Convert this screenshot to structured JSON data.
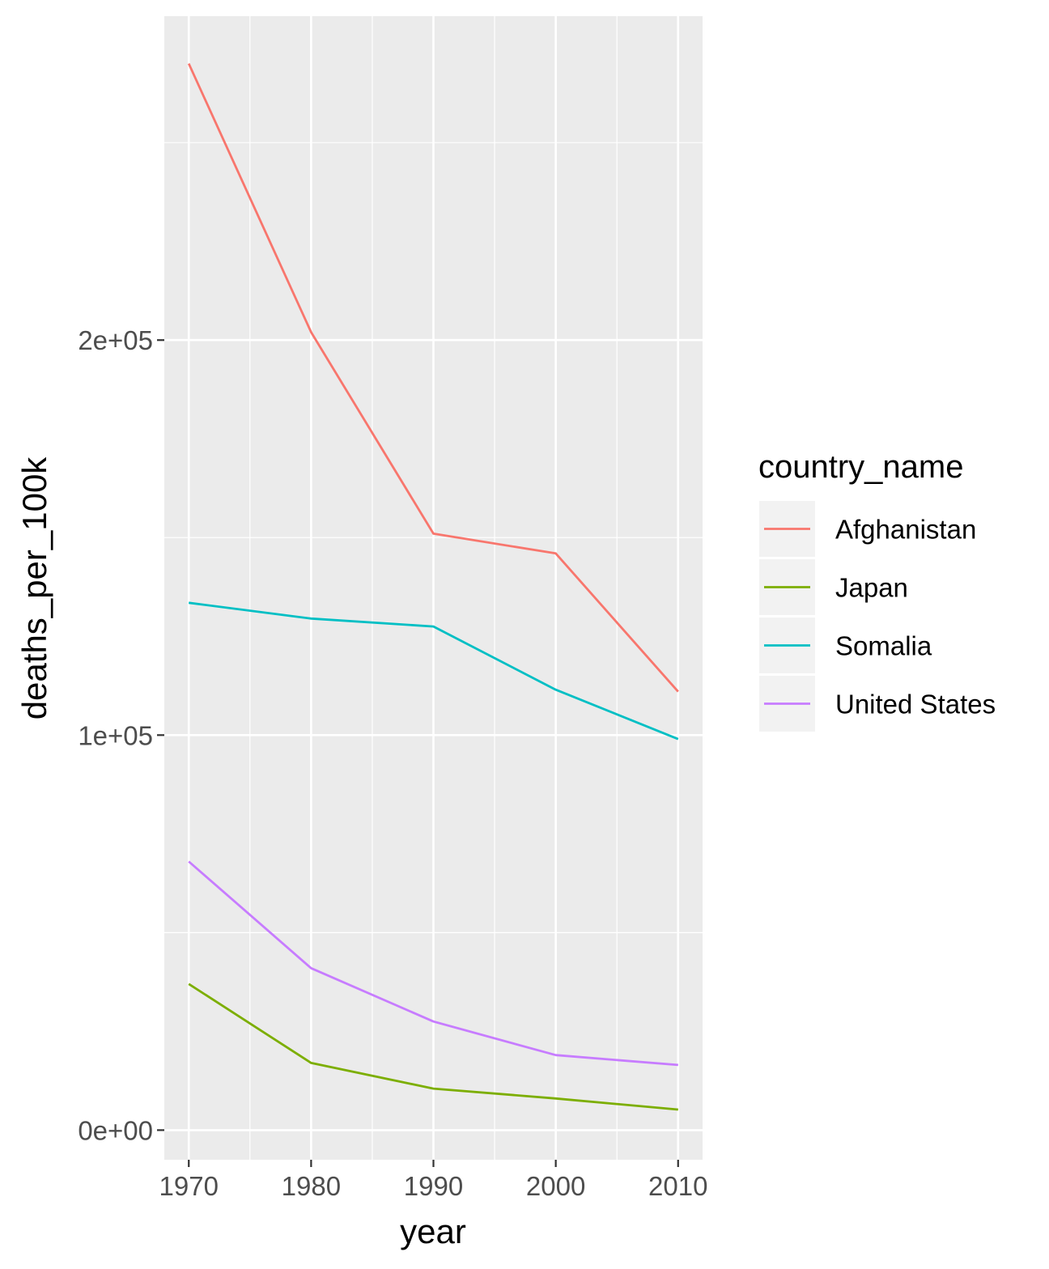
{
  "chart_data": {
    "type": "line",
    "xlabel": "year",
    "ylabel": "deaths_per_100k",
    "x": [
      1970,
      1980,
      1990,
      2000,
      2010
    ],
    "x_ticks": [
      1970,
      1980,
      1990,
      2000,
      2010
    ],
    "x_tick_labels": [
      "1970",
      "1980",
      "1990",
      "2000",
      "2010"
    ],
    "xlim": [
      1968,
      2012
    ],
    "y_ticks": [
      0,
      100000,
      200000
    ],
    "y_tick_labels": [
      "0e+00",
      "1e+05",
      "2e+05"
    ],
    "ylim": [
      -7500,
      282000
    ],
    "grid": true,
    "panel_background": "#EBEBEB",
    "legend": {
      "title": "country_name",
      "position": "right"
    },
    "series": [
      {
        "name": "Afghanistan",
        "color": "#F8766D",
        "values": [
          270000,
          202000,
          151000,
          146000,
          111000
        ]
      },
      {
        "name": "Japan",
        "color": "#7CAE00",
        "values": [
          37000,
          17000,
          10500,
          8000,
          5200
        ]
      },
      {
        "name": "Somalia",
        "color": "#00BFC4",
        "values": [
          133500,
          129500,
          127500,
          111500,
          99000
        ]
      },
      {
        "name": "United States",
        "color": "#C77CFF",
        "values": [
          68000,
          41000,
          27500,
          19000,
          16500
        ]
      }
    ]
  }
}
